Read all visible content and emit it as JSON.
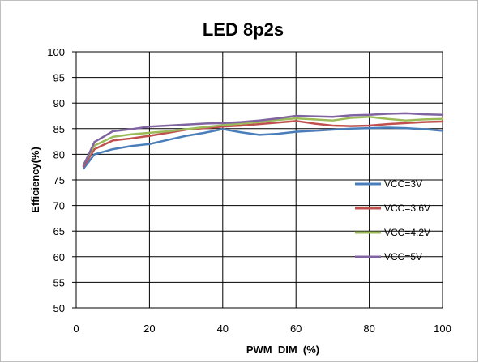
{
  "chart_data": {
    "type": "line",
    "title": "LED 8p2s",
    "xlabel": "PWM  DIM  (%)",
    "ylabel": "Efficiency(%)",
    "xlim": [
      0,
      100
    ],
    "ylim": [
      50,
      100
    ],
    "xticks": [
      0,
      20,
      40,
      60,
      80,
      100
    ],
    "yticks": [
      50,
      55,
      60,
      65,
      70,
      75,
      80,
      85,
      90,
      95,
      100
    ],
    "grid": "horizontal-and-vertical",
    "legend_position": "right",
    "x": [
      2,
      5,
      10,
      15,
      20,
      25,
      30,
      35,
      40,
      45,
      50,
      55,
      60,
      65,
      70,
      75,
      80,
      85,
      90,
      95,
      100
    ],
    "series": [
      {
        "name": "VCC=3V",
        "color": "#4a7ebb",
        "values": [
          77.2,
          80.0,
          81.0,
          81.6,
          82.0,
          82.8,
          83.6,
          84.2,
          84.9,
          84.3,
          83.8,
          84.0,
          84.4,
          84.6,
          84.8,
          85.0,
          85.1,
          85.2,
          85.1,
          84.9,
          84.6
        ]
      },
      {
        "name": "VCC=3.6V",
        "color": "#c0504d",
        "values": [
          77.6,
          81.0,
          82.7,
          83.1,
          83.6,
          84.2,
          84.8,
          85.1,
          85.4,
          85.6,
          85.9,
          86.2,
          86.5,
          86.0,
          85.6,
          85.5,
          85.6,
          85.9,
          86.1,
          86.3,
          86.4
        ]
      },
      {
        "name": "VCC=4.2V",
        "color": "#9bbb59",
        "values": [
          78.0,
          81.7,
          83.4,
          83.9,
          84.2,
          84.5,
          84.9,
          85.3,
          85.7,
          86.0,
          86.3,
          86.7,
          87.0,
          86.8,
          86.6,
          87.1,
          87.3,
          86.9,
          86.6,
          86.8,
          86.9
        ]
      },
      {
        "name": "VCC=5V",
        "color": "#8064a2",
        "values": [
          77.8,
          82.4,
          84.5,
          84.9,
          85.4,
          85.6,
          85.8,
          86.0,
          86.1,
          86.3,
          86.6,
          87.0,
          87.5,
          87.4,
          87.3,
          87.6,
          87.7,
          87.9,
          88.0,
          87.8,
          87.7
        ]
      }
    ]
  }
}
